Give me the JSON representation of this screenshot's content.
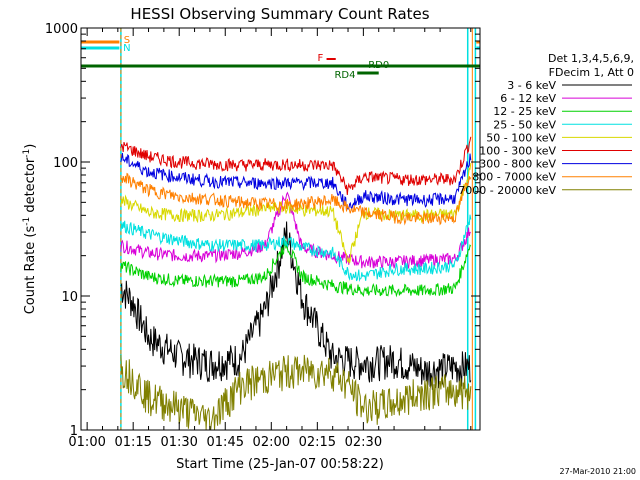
{
  "chart_data": {
    "type": "line",
    "title": "HESSI Observing Summary Count Rates",
    "xlabel": "Start Time (25-Jan-07 00:58:22)",
    "ylabel_main": "Count Rate (s",
    "ylabel_sup1": "-1",
    "ylabel_mid": " detector",
    "ylabel_sup2": "-1",
    "ylabel_end": ")",
    "yscale": "log",
    "ylim": [
      1,
      1000
    ],
    "x_ticks": [
      "01:00",
      "01:15",
      "01:30",
      "01:45",
      "02:00",
      "02:15",
      "02:30"
    ],
    "y_ticks": [
      "1",
      "10",
      "100",
      "1000"
    ],
    "legend_header": [
      "Det 1,3,4,5,6,9,",
      "FDecim 1, Att 0"
    ],
    "footer_date": "27-Mar-2010 21:00",
    "series": [
      {
        "name": "3 - 6 keV",
        "color": "#000000",
        "values": [
          [
            71,
            12
          ],
          [
            75,
            9
          ],
          [
            80,
            5
          ],
          [
            90,
            3.6
          ],
          [
            100,
            3.2
          ],
          [
            110,
            3.5
          ],
          [
            118,
            8
          ],
          [
            125,
            30
          ],
          [
            130,
            10
          ],
          [
            140,
            3.5
          ],
          [
            150,
            3.2
          ],
          [
            160,
            3.4
          ],
          [
            170,
            2.8
          ],
          [
            180,
            3
          ],
          [
            185,
            3
          ]
        ]
      },
      {
        "name": "6 - 12 keV",
        "color": "#d800d8",
        "values": [
          [
            71,
            24
          ],
          [
            80,
            21
          ],
          [
            90,
            20
          ],
          [
            100,
            20
          ],
          [
            110,
            21
          ],
          [
            118,
            24
          ],
          [
            125,
            60
          ],
          [
            130,
            23
          ],
          [
            140,
            20
          ],
          [
            150,
            18
          ],
          [
            160,
            18
          ],
          [
            170,
            18.5
          ],
          [
            180,
            19
          ],
          [
            185,
            32
          ]
        ]
      },
      {
        "name": "12 - 25 keV",
        "color": "#00d000",
        "values": [
          [
            71,
            17
          ],
          [
            80,
            14
          ],
          [
            90,
            13
          ],
          [
            100,
            13
          ],
          [
            110,
            13
          ],
          [
            118,
            14
          ],
          [
            125,
            25
          ],
          [
            130,
            14
          ],
          [
            140,
            12
          ],
          [
            150,
            11
          ],
          [
            160,
            11
          ],
          [
            170,
            11
          ],
          [
            180,
            11.5
          ],
          [
            185,
            25
          ]
        ]
      },
      {
        "name": "25 - 50 keV",
        "color": "#00e0e0",
        "values": [
          [
            71,
            34
          ],
          [
            80,
            29
          ],
          [
            90,
            26
          ],
          [
            100,
            24
          ],
          [
            110,
            24
          ],
          [
            118,
            24
          ],
          [
            125,
            26
          ],
          [
            130,
            23
          ],
          [
            140,
            21
          ],
          [
            145,
            15
          ],
          [
            150,
            14
          ],
          [
            160,
            16
          ],
          [
            170,
            16
          ],
          [
            180,
            17
          ],
          [
            185,
            40
          ]
        ]
      },
      {
        "name": "50 - 100 keV",
        "color": "#d8d800",
        "values": [
          [
            71,
            52
          ],
          [
            80,
            42
          ],
          [
            90,
            40
          ],
          [
            100,
            40
          ],
          [
            110,
            42
          ],
          [
            118,
            45
          ],
          [
            125,
            46
          ],
          [
            130,
            44
          ],
          [
            140,
            43
          ],
          [
            145,
            18
          ],
          [
            150,
            42
          ],
          [
            160,
            40
          ],
          [
            170,
            40
          ],
          [
            180,
            41
          ],
          [
            185,
            90
          ]
        ]
      },
      {
        "name": "100 - 300 keV",
        "color": "#e00000",
        "values": [
          [
            71,
            133
          ],
          [
            80,
            110
          ],
          [
            90,
            100
          ],
          [
            100,
            97
          ],
          [
            110,
            95
          ],
          [
            118,
            96
          ],
          [
            125,
            96
          ],
          [
            130,
            95
          ],
          [
            140,
            95
          ],
          [
            145,
            62
          ],
          [
            150,
            78
          ],
          [
            160,
            75
          ],
          [
            170,
            74
          ],
          [
            180,
            75
          ],
          [
            185,
            150
          ]
        ]
      },
      {
        "name": "300 - 800 keV",
        "color": "#0000e0",
        "values": [
          [
            71,
            108
          ],
          [
            80,
            85
          ],
          [
            90,
            77
          ],
          [
            100,
            72
          ],
          [
            110,
            70
          ],
          [
            118,
            70
          ],
          [
            125,
            70
          ],
          [
            130,
            70
          ],
          [
            140,
            70
          ],
          [
            145,
            46
          ],
          [
            150,
            56
          ],
          [
            160,
            53
          ],
          [
            170,
            52
          ],
          [
            180,
            54
          ],
          [
            185,
            110
          ]
        ]
      },
      {
        "name": "800 - 7000 keV",
        "color": "#ff8000",
        "values": [
          [
            71,
            78
          ],
          [
            80,
            62
          ],
          [
            90,
            55
          ],
          [
            100,
            53
          ],
          [
            110,
            50
          ],
          [
            118,
            49
          ],
          [
            125,
            48
          ],
          [
            130,
            49
          ],
          [
            140,
            52
          ],
          [
            145,
            45
          ],
          [
            150,
            42
          ],
          [
            160,
            39
          ],
          [
            170,
            38
          ],
          [
            180,
            39
          ],
          [
            185,
            85
          ]
        ]
      },
      {
        "name": "7000 - 20000 keV",
        "color": "#808000",
        "values": [
          [
            71,
            3
          ],
          [
            75,
            2.5
          ],
          [
            80,
            1.8
          ],
          [
            90,
            1.5
          ],
          [
            100,
            1.2
          ],
          [
            110,
            2.2
          ],
          [
            118,
            2.5
          ],
          [
            125,
            2.8
          ],
          [
            130,
            2.8
          ],
          [
            140,
            2.8
          ],
          [
            145,
            2.2
          ],
          [
            150,
            1.5
          ],
          [
            160,
            1.6
          ],
          [
            170,
            2
          ],
          [
            180,
            2
          ],
          [
            185,
            2
          ]
        ]
      }
    ],
    "flags": [
      {
        "label": "S",
        "color": "#ff8000"
      },
      {
        "label": "N",
        "color": "#00e0e0"
      },
      {
        "label": "F",
        "color": "#e00000"
      },
      {
        "label": "RD0",
        "color": "#006400"
      },
      {
        "label": "RD4",
        "color": "#006400"
      }
    ]
  }
}
